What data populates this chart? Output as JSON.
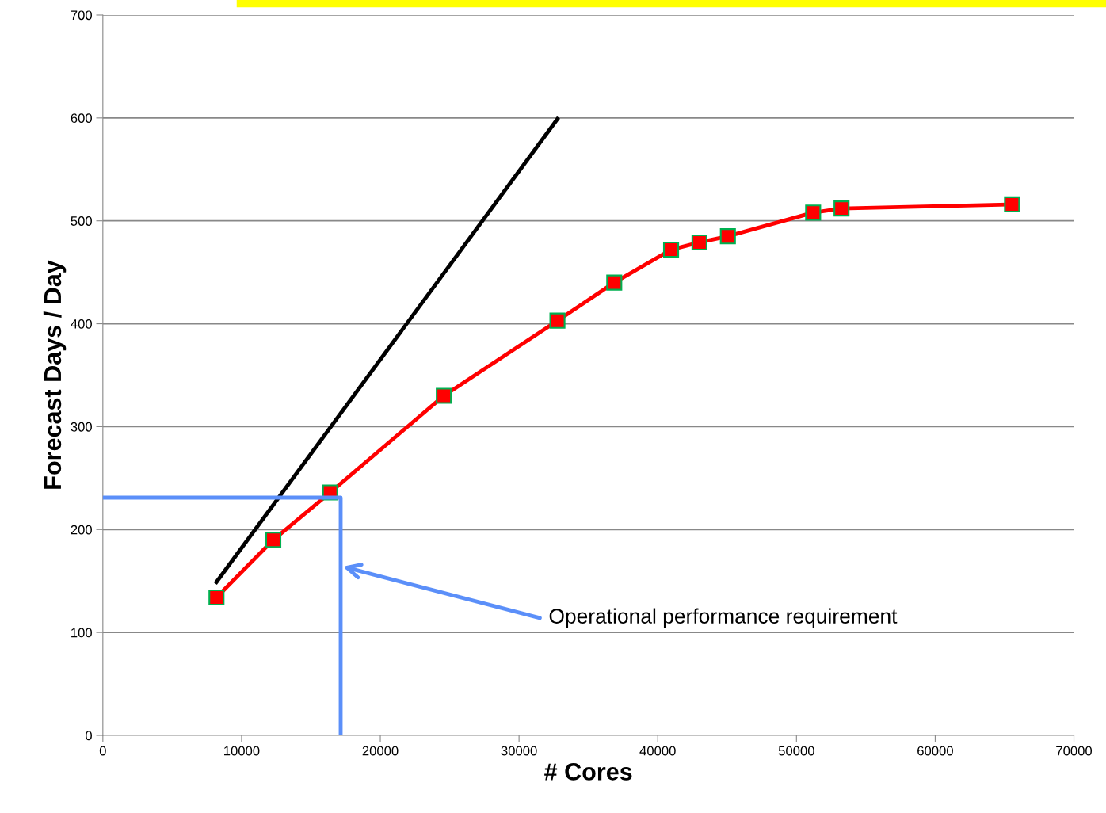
{
  "chart_data": {
    "type": "line",
    "xlabel": "# Cores",
    "ylabel": "Forecast Days / Day",
    "xlim": [
      0,
      70000
    ],
    "ylim": [
      0,
      700
    ],
    "xticks": [
      0,
      10000,
      20000,
      30000,
      40000,
      50000,
      60000,
      70000
    ],
    "yticks": [
      0,
      100,
      200,
      300,
      400,
      500,
      600,
      700
    ],
    "grid": "y",
    "series": [
      {
        "color": "#ff0000",
        "marker": "square",
        "x": [
          8192,
          12288,
          16384,
          24576,
          32768,
          36864,
          40960,
          43008,
          45056,
          51200,
          53248,
          65536
        ],
        "values": [
          134,
          190,
          236,
          330,
          403,
          440,
          472,
          479,
          485,
          508,
          512,
          516
        ]
      },
      {
        "color": "#000000",
        "marker": "none",
        "x": [
          8192,
          32768
        ],
        "values": [
          149,
          599
        ]
      },
      {
        "color": "#5b8ff9",
        "marker": "none",
        "x": [
          0,
          17143,
          17143
        ],
        "values": [
          231,
          231,
          0
        ]
      }
    ],
    "annotations": [
      "Operational performance requirement"
    ]
  }
}
